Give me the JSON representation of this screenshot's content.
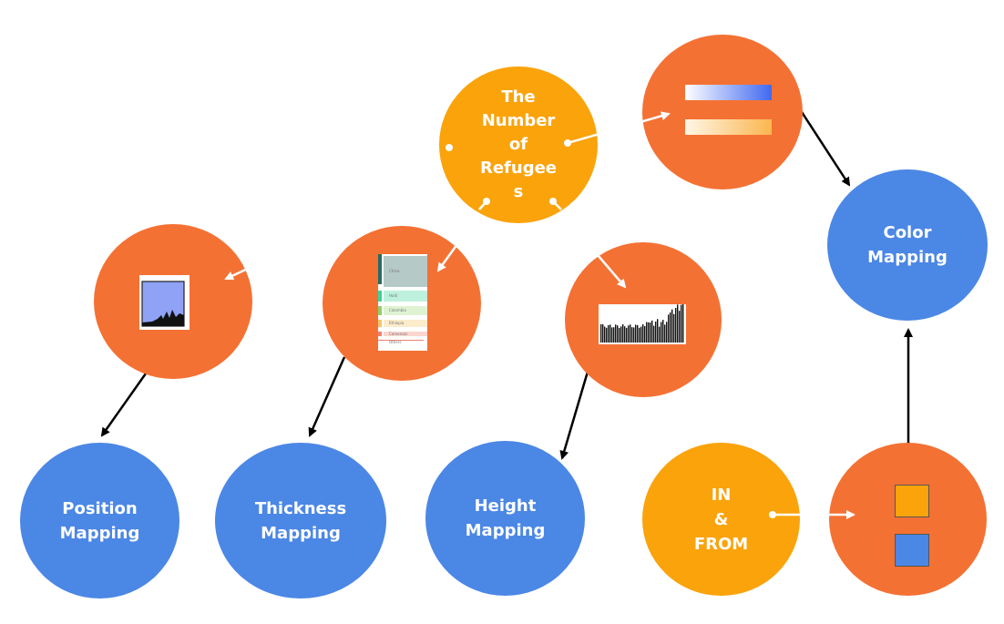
{
  "nodes": {
    "refugees": {
      "label": "The\nNumber\nof\nRefugee\ns"
    },
    "in_from": {
      "label": "IN\n&\nFROM"
    },
    "color_mapping": {
      "label": "Color\nMapping"
    },
    "position_mapping": {
      "label": "Position\nMapping"
    },
    "thickness_mapping": {
      "label": "Thickness\nMapping"
    },
    "height_mapping": {
      "label": "Height\nMapping"
    }
  },
  "legend_thumbnail": {
    "items": [
      "China",
      "Haiti",
      "Colombia",
      "Ethiopia",
      "Cameroon",
      "Others"
    ]
  },
  "colors": {
    "blue": "#4b87e5",
    "orange": "#f47134",
    "amber": "#faa30b"
  }
}
